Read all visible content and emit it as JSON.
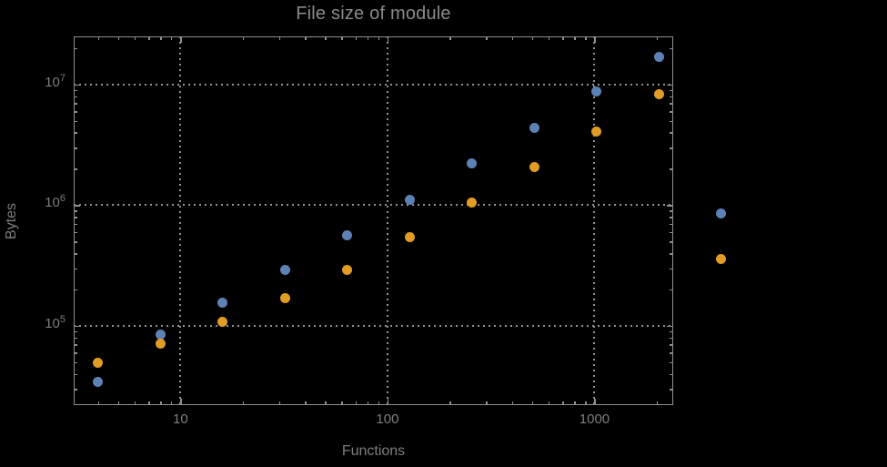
{
  "chart": {
    "background_color": "#000000",
    "frame_color": "#8f8f8f",
    "grid_color": "#929292",
    "text_color": "#7d7d7d"
  },
  "chart_data": {
    "type": "scatter",
    "title": "File size of module",
    "xlabel": "Functions",
    "ylabel": "Bytes",
    "x_scale": "log",
    "y_scale": "log",
    "xlim": [
      3.05,
      2400
    ],
    "ylim": [
      22000,
      25000000
    ],
    "grid": true,
    "grid_style": "dotted",
    "legend": "none",
    "marker": "filled-circle",
    "x_ticks": [
      {
        "value": 10,
        "label": "10"
      },
      {
        "value": 100,
        "label": "100"
      },
      {
        "value": 1000,
        "label": "1000"
      }
    ],
    "y_ticks": [
      {
        "value": 100000,
        "base": "10",
        "exponent": "5"
      },
      {
        "value": 1000000,
        "base": "10",
        "exponent": "6"
      },
      {
        "value": 10000000,
        "base": "10",
        "exponent": "7"
      }
    ],
    "series": [
      {
        "name": "blue",
        "color": "#5E81B5",
        "x": [
          4,
          8,
          16,
          32,
          64,
          128,
          256,
          512,
          1024,
          2048,
          4096
        ],
        "y": [
          34000,
          84000,
          155000,
          290000,
          560000,
          1100000,
          2200000,
          4350000,
          8700000,
          17000000,
          850000
        ]
      },
      {
        "name": "orange",
        "color": "#E19C24",
        "x": [
          4,
          8,
          16,
          32,
          64,
          128,
          256,
          512,
          1024,
          2048,
          4096
        ],
        "y": [
          49000,
          71000,
          107000,
          168000,
          290000,
          545000,
          1050000,
          2060000,
          4100000,
          8300000,
          360000
        ]
      }
    ]
  }
}
